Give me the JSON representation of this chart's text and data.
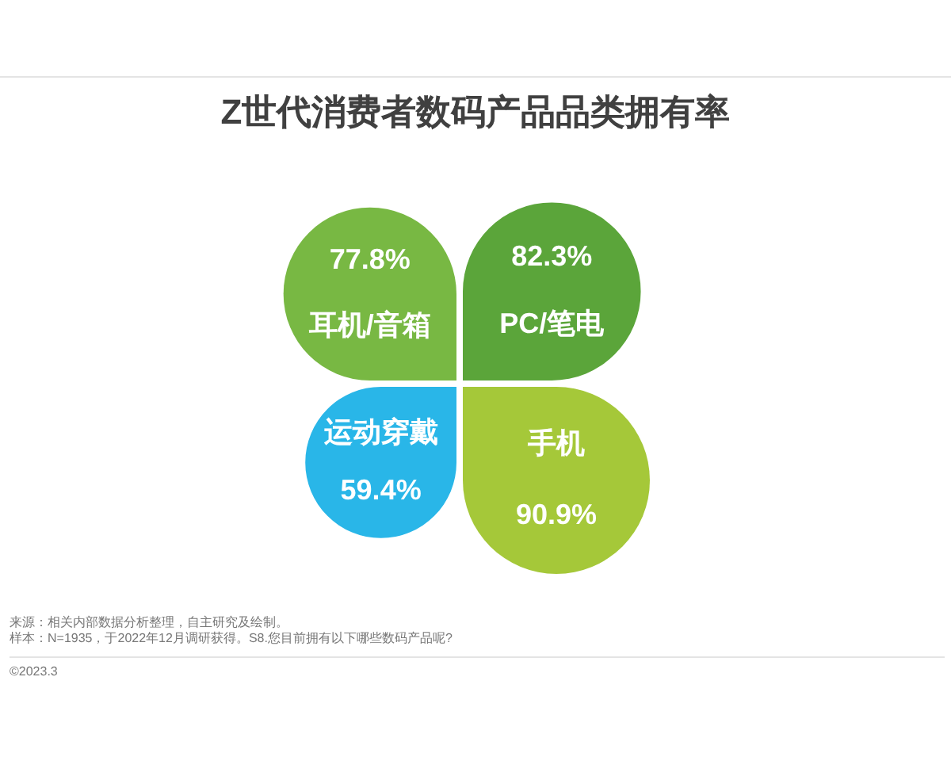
{
  "chart_data": {
    "type": "other",
    "title": "Z世代消费者数码产品品类拥有率",
    "categories": [
      "耳机/音箱",
      "PC/笔电",
      "运动穿戴",
      "手机"
    ],
    "values": [
      77.8,
      82.3,
      59.4,
      90.9
    ],
    "value_labels": [
      "77.8%",
      "82.3%",
      "59.4%",
      "90.9%"
    ],
    "colors": [
      "#78b843",
      "#5ba53a",
      "#29b6e8",
      "#a5c839"
    ],
    "annotations": [
      "来源：相关内部数据分析整理，自主研究及绘制。",
      "样本：N=1935，于2022年12月调研获得。S8.您目前拥有以下哪些数码产品呢?",
      "©2023.3"
    ]
  }
}
